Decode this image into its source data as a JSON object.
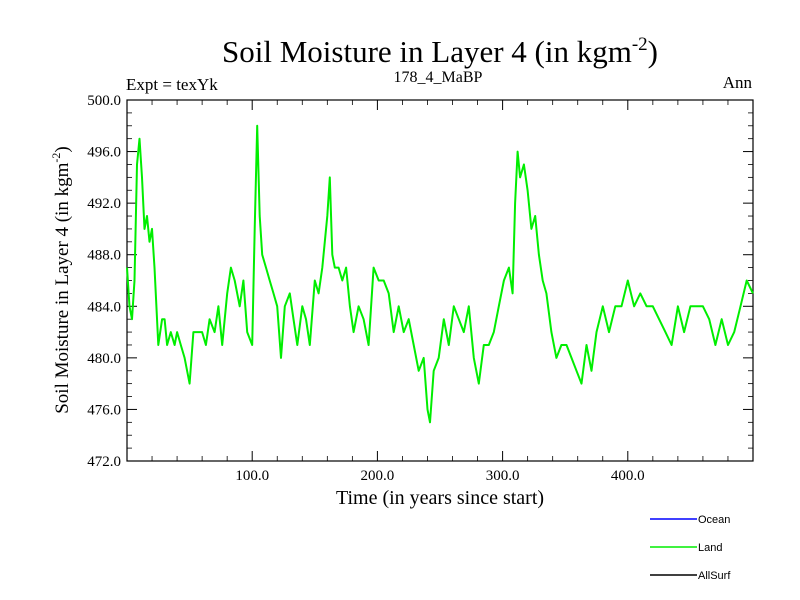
{
  "chart_data": {
    "type": "line",
    "title": "Soil Moisture in Layer 4 (in kgm",
    "title_sup": "-2",
    "title_close": ")",
    "subtitle_left": "Expt = texYk",
    "subtitle_center": "178_4_MaBP",
    "subtitle_right": "Ann",
    "xlabel": "Time (in years since start)",
    "ylabel": "Soil Moisture in Layer 4 (in kgm",
    "ylabel_sup": "-2",
    "ylabel_close": ")",
    "xlim": [
      0,
      500
    ],
    "ylim": [
      472,
      500
    ],
    "xticks": [
      100,
      200,
      300,
      400
    ],
    "xtick_labels": [
      "100.0",
      "200.0",
      "300.0",
      "400.0"
    ],
    "yticks": [
      472,
      476,
      480,
      484,
      488,
      492,
      496,
      500
    ],
    "ytick_labels": [
      "472.0",
      "476.0",
      "480.0",
      "484.0",
      "488.0",
      "492.0",
      "496.0",
      "500.0"
    ],
    "grid": false,
    "legend_position": "bottom-right",
    "legend": [
      {
        "name": "Ocean",
        "color": "#0000ff"
      },
      {
        "name": "Land",
        "color": "#00ee00"
      },
      {
        "name": "AllSurf",
        "color": "#000000"
      }
    ],
    "series": [
      {
        "name": "Land",
        "color": "#00ee00",
        "x": [
          0,
          2,
          4,
          6,
          8,
          10,
          12,
          14,
          16,
          18,
          20,
          22,
          25,
          28,
          30,
          32,
          35,
          38,
          40,
          43,
          46,
          50,
          53,
          56,
          60,
          63,
          66,
          70,
          73,
          76,
          80,
          83,
          86,
          90,
          93,
          96,
          100,
          102,
          104,
          106,
          108,
          111,
          114,
          117,
          120,
          123,
          126,
          130,
          133,
          136,
          140,
          143,
          146,
          150,
          153,
          156,
          160,
          162,
          164,
          166,
          169,
          172,
          175,
          178,
          181,
          185,
          189,
          193,
          197,
          201,
          205,
          209,
          213,
          217,
          221,
          225,
          229,
          233,
          237,
          240,
          242,
          245,
          249,
          253,
          257,
          261,
          265,
          269,
          273,
          277,
          281,
          285,
          289,
          293,
          297,
          301,
          305,
          308,
          310,
          312,
          314,
          317,
          320,
          323,
          326,
          329,
          332,
          335,
          339,
          343,
          347,
          351,
          355,
          359,
          363,
          367,
          371,
          375,
          380,
          385,
          390,
          395,
          400,
          405,
          410,
          415,
          420,
          425,
          430,
          435,
          440,
          445,
          450,
          455,
          460,
          465,
          470,
          475,
          480,
          485,
          490,
          495,
          500
        ],
        "values": [
          487,
          484,
          483,
          486,
          495,
          497,
          494,
          490,
          491,
          489,
          490,
          487,
          481,
          483,
          483,
          481,
          482,
          481,
          482,
          481,
          480,
          478,
          482,
          482,
          482,
          481,
          483,
          482,
          484,
          481,
          485,
          487,
          486,
          484,
          486,
          482,
          481,
          490,
          498,
          491,
          488,
          487,
          486,
          485,
          484,
          480,
          484,
          485,
          483,
          481,
          484,
          483,
          481,
          486,
          485,
          487,
          491,
          494,
          488,
          487,
          487,
          486,
          487,
          484,
          482,
          484,
          483,
          481,
          487,
          486,
          486,
          485,
          482,
          484,
          482,
          483,
          481,
          479,
          480,
          476,
          475,
          479,
          480,
          483,
          481,
          484,
          483,
          482,
          484,
          480,
          478,
          481,
          481,
          482,
          484,
          486,
          487,
          485,
          492,
          496,
          494,
          495,
          493,
          490,
          491,
          488,
          486,
          485,
          482,
          480,
          481,
          481,
          480,
          479,
          478,
          481,
          479,
          482,
          484,
          482,
          484,
          484,
          486,
          484,
          485,
          484,
          484,
          483,
          482,
          481,
          484,
          482,
          484,
          484,
          484,
          483,
          481,
          483,
          481,
          482,
          484,
          486,
          485
        ]
      }
    ]
  }
}
